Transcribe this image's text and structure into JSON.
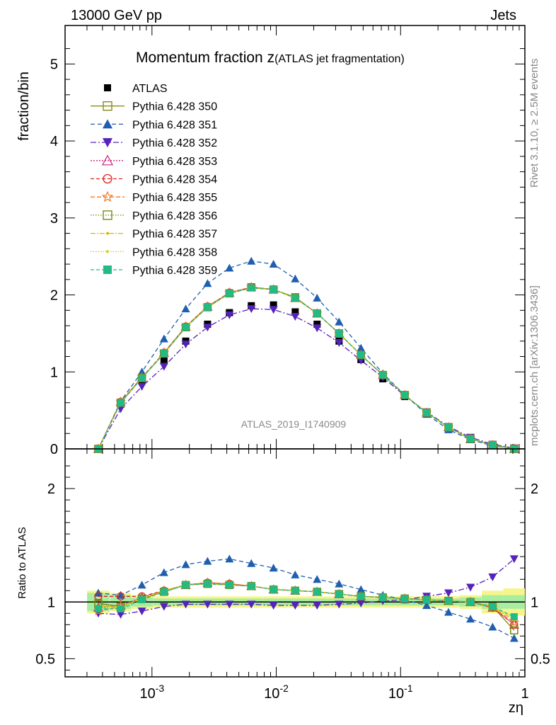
{
  "header": {
    "left": "13000 GeV pp",
    "right": "Jets"
  },
  "side_labels": {
    "rivet": "Rivet 3.1.10, ≥ 2.5M events",
    "mcplots": "mcplots.cern.ch [arXiv:1306.3436]"
  },
  "chart_data": {
    "type": "line",
    "title_main": "Momentum fraction z",
    "title_sub": "(ATLAS jet fragmentation)",
    "analysis_tag": "ATLAS_2019_I1740909",
    "xlabel": "zη",
    "x_scale": "log",
    "xlim": [
      0.0002,
      1
    ],
    "x_tick_labels": [
      "10^-3",
      "10^-2",
      "10^-1",
      "1"
    ],
    "upper": {
      "ylabel": "fraction/bin",
      "ylim": [
        0,
        5.5
      ],
      "y_ticks": [
        0,
        1,
        2,
        3,
        4,
        5
      ]
    },
    "lower": {
      "ylabel": "Ratio to ATLAS",
      "ylim": [
        0.34,
        2.35
      ],
      "y_ticks": [
        0.5,
        1,
        2
      ],
      "reference_line": 1
    },
    "x": [
      0.00037,
      0.00056,
      0.00083,
      0.00125,
      0.00187,
      0.0028,
      0.0042,
      0.0063,
      0.0095,
      0.0142,
      0.0213,
      0.032,
      0.048,
      0.072,
      0.108,
      0.162,
      0.243,
      0.365,
      0.55,
      0.82
    ],
    "data": {
      "name": "ATLAS",
      "values": [
        0.0,
        0.58,
        0.88,
        1.14,
        1.4,
        1.62,
        1.77,
        1.86,
        1.87,
        1.78,
        1.62,
        1.4,
        1.16,
        0.91,
        0.68,
        0.46,
        0.27,
        0.13,
        0.05,
        0.01
      ]
    },
    "band_ratio": {
      "inner": [
        0.08,
        0.06,
        0.04,
        0.03,
        0.03,
        0.03,
        0.03,
        0.03,
        0.03,
        0.03,
        0.03,
        0.03,
        0.03,
        0.03,
        0.03,
        0.03,
        0.03,
        0.04,
        0.06,
        0.06
      ],
      "outer": [
        0.1,
        0.08,
        0.06,
        0.05,
        0.05,
        0.05,
        0.05,
        0.05,
        0.05,
        0.05,
        0.05,
        0.05,
        0.05,
        0.05,
        0.05,
        0.05,
        0.05,
        0.06,
        0.1,
        0.12
      ]
    },
    "series": [
      {
        "name": "Pythia 6.428 350",
        "color": "#8b8b1a",
        "dash": "",
        "marker": "square-open",
        "values": [
          0.0,
          0.6,
          0.92,
          1.24,
          1.58,
          1.84,
          2.02,
          2.1,
          2.07,
          1.97,
          1.76,
          1.5,
          1.22,
          0.96,
          0.7,
          0.47,
          0.28,
          0.13,
          0.05,
          0.0
        ],
        "ratio": [
          0.99,
          0.96,
          1.03,
          1.09,
          1.15,
          1.16,
          1.15,
          1.14,
          1.11,
          1.1,
          1.09,
          1.07,
          1.05,
          1.04,
          1.03,
          1.02,
          1.01,
          1.0,
          0.96,
          0.75
        ]
      },
      {
        "name": "Pythia 6.428 351",
        "color": "#1f5fb0",
        "dash": "6,4",
        "marker": "triangle-up",
        "values": [
          0.0,
          0.62,
          1.0,
          1.43,
          1.82,
          2.15,
          2.35,
          2.44,
          2.4,
          2.21,
          1.96,
          1.65,
          1.31,
          0.98,
          0.7,
          0.45,
          0.25,
          0.12,
          0.04,
          0.0
        ],
        "ratio": [
          1.08,
          1.06,
          1.15,
          1.26,
          1.33,
          1.36,
          1.38,
          1.34,
          1.3,
          1.24,
          1.2,
          1.16,
          1.11,
          1.06,
          1.02,
          0.97,
          0.91,
          0.85,
          0.78,
          0.68
        ]
      },
      {
        "name": "Pythia 6.428 352",
        "color": "#5522bb",
        "dash": "8,3,2,3",
        "marker": "triangle-down",
        "values": [
          0.0,
          0.52,
          0.81,
          1.07,
          1.36,
          1.58,
          1.74,
          1.82,
          1.81,
          1.72,
          1.57,
          1.38,
          1.15,
          0.93,
          0.69,
          0.48,
          0.29,
          0.15,
          0.06,
          0.01
        ],
        "ratio": [
          0.9,
          0.89,
          0.92,
          0.96,
          0.98,
          0.98,
          0.98,
          0.98,
          0.97,
          0.97,
          0.97,
          0.98,
          0.99,
          1.01,
          1.02,
          1.05,
          1.08,
          1.13,
          1.22,
          1.38
        ]
      },
      {
        "name": "Pythia 6.428 353",
        "color": "#cc2277",
        "dash": "2,2",
        "marker": "triangle-open",
        "values": [
          0.0,
          0.61,
          0.92,
          1.25,
          1.59,
          1.85,
          2.03,
          2.1,
          2.07,
          1.96,
          1.76,
          1.5,
          1.22,
          0.96,
          0.7,
          0.47,
          0.28,
          0.13,
          0.05,
          0.0
        ],
        "ratio": [
          0.95,
          0.97,
          1.04,
          1.1,
          1.15,
          1.17,
          1.16,
          1.14,
          1.11,
          1.1,
          1.09,
          1.07,
          1.05,
          1.04,
          1.03,
          1.02,
          1.01,
          1.0,
          0.95,
          0.8
        ]
      },
      {
        "name": "Pythia 6.428 354",
        "color": "#e02020",
        "dash": "5,3",
        "marker": "circle-open",
        "values": [
          0.0,
          0.61,
          0.93,
          1.25,
          1.59,
          1.85,
          2.03,
          2.1,
          2.07,
          1.96,
          1.76,
          1.5,
          1.22,
          0.96,
          0.7,
          0.47,
          0.28,
          0.13,
          0.05,
          0.0
        ],
        "ratio": [
          1.05,
          1.05,
          1.05,
          1.1,
          1.15,
          1.17,
          1.16,
          1.14,
          1.11,
          1.1,
          1.09,
          1.07,
          1.05,
          1.04,
          1.03,
          1.02,
          1.01,
          1.0,
          0.95,
          0.8
        ]
      },
      {
        "name": "Pythia 6.428 355",
        "color": "#ee7722",
        "dash": "6,3",
        "marker": "star-open",
        "values": [
          0.0,
          0.61,
          0.93,
          1.25,
          1.59,
          1.85,
          2.03,
          2.1,
          2.07,
          1.96,
          1.76,
          1.5,
          1.22,
          0.96,
          0.7,
          0.47,
          0.28,
          0.13,
          0.05,
          0.0
        ],
        "ratio": [
          0.92,
          0.96,
          1.03,
          1.1,
          1.15,
          1.17,
          1.16,
          1.14,
          1.11,
          1.1,
          1.09,
          1.07,
          1.05,
          1.04,
          1.03,
          1.02,
          1.01,
          1.0,
          0.95,
          0.82
        ]
      },
      {
        "name": "Pythia 6.428 356",
        "color": "#7a8a10",
        "dash": "1.5,2",
        "marker": "square-open",
        "values": [
          0.0,
          0.6,
          0.92,
          1.24,
          1.58,
          1.84,
          2.02,
          2.1,
          2.07,
          1.96,
          1.76,
          1.5,
          1.22,
          0.96,
          0.7,
          0.47,
          0.28,
          0.13,
          0.05,
          0.0
        ],
        "ratio": [
          0.98,
          0.96,
          1.03,
          1.09,
          1.15,
          1.16,
          1.15,
          1.14,
          1.11,
          1.1,
          1.09,
          1.07,
          1.05,
          1.04,
          1.03,
          1.02,
          1.01,
          1.0,
          0.96,
          0.75
        ]
      },
      {
        "name": "Pythia 6.428 357",
        "color": "#d8b800",
        "dash": "7,2,2,2",
        "marker": "dot",
        "values": [
          0.0,
          0.6,
          0.92,
          1.24,
          1.58,
          1.84,
          2.02,
          2.09,
          2.07,
          1.96,
          1.76,
          1.5,
          1.22,
          0.96,
          0.7,
          0.47,
          0.28,
          0.13,
          0.05,
          0.0
        ],
        "ratio": [
          0.96,
          0.96,
          1.03,
          1.1,
          1.15,
          1.16,
          1.15,
          1.14,
          1.11,
          1.1,
          1.09,
          1.07,
          1.05,
          1.04,
          1.03,
          1.02,
          1.01,
          1.0,
          0.96,
          0.84
        ]
      },
      {
        "name": "Pythia 6.428 358",
        "color": "#c8d41a",
        "dash": "1.5,2",
        "marker": "dot",
        "values": [
          0.0,
          0.6,
          0.92,
          1.24,
          1.58,
          1.84,
          2.02,
          2.09,
          2.07,
          1.96,
          1.76,
          1.5,
          1.22,
          0.96,
          0.7,
          0.47,
          0.28,
          0.13,
          0.05,
          0.0
        ],
        "ratio": [
          0.96,
          0.96,
          1.03,
          1.1,
          1.15,
          1.16,
          1.15,
          1.14,
          1.11,
          1.1,
          1.09,
          1.07,
          1.05,
          1.04,
          1.03,
          1.02,
          1.01,
          1.0,
          0.96,
          0.86
        ]
      },
      {
        "name": "Pythia 6.428 359",
        "color": "#22bb88",
        "dash": "5,3",
        "marker": "square-filled",
        "values": [
          0.0,
          0.6,
          0.92,
          1.24,
          1.58,
          1.84,
          2.02,
          2.09,
          2.07,
          1.96,
          1.76,
          1.5,
          1.22,
          0.96,
          0.7,
          0.47,
          0.28,
          0.13,
          0.05,
          0.0
        ],
        "ratio": [
          0.94,
          0.94,
          1.02,
          1.09,
          1.15,
          1.16,
          1.15,
          1.14,
          1.11,
          1.1,
          1.09,
          1.07,
          1.05,
          1.04,
          1.03,
          1.02,
          1.01,
          1.0,
          0.96,
          0.87
        ]
      }
    ]
  }
}
